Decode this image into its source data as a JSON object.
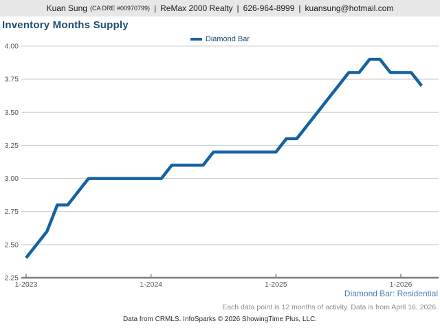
{
  "header": {
    "agent_name": "Kuan Sung",
    "license": "(CA DRE #00970799)",
    "divider": "|",
    "brokerage": "ReMax 2000 Realty",
    "phone": "626-964-8999",
    "email": "kuansung@hotmail.com"
  },
  "title": "Inventory Months Supply",
  "legend": {
    "label": "Diamond Bar"
  },
  "chart_data": {
    "type": "line",
    "title": "Inventory Months Supply",
    "series_name": "Diamond Bar",
    "months": [
      "1-2023",
      "2-2023",
      "3-2023",
      "4-2023",
      "5-2023",
      "6-2023",
      "7-2023",
      "8-2023",
      "9-2023",
      "10-2023",
      "11-2023",
      "12-2023",
      "1-2024",
      "2-2024",
      "3-2024",
      "4-2024",
      "5-2024",
      "6-2024",
      "7-2024",
      "8-2024",
      "9-2024",
      "10-2024",
      "11-2024",
      "12-2024",
      "1-2025",
      "2-2025",
      "3-2025",
      "4-2025",
      "5-2025",
      "6-2025",
      "7-2025",
      "8-2025",
      "9-2025",
      "10-2025",
      "11-2025",
      "12-2025",
      "1-2026",
      "2-2026",
      "3-2026"
    ],
    "values": [
      2.4,
      2.5,
      2.6,
      2.8,
      2.8,
      2.9,
      3.0,
      3.0,
      3.0,
      3.0,
      3.0,
      3.0,
      3.0,
      3.0,
      3.1,
      3.1,
      3.1,
      3.1,
      3.2,
      3.2,
      3.2,
      3.2,
      3.2,
      3.2,
      3.2,
      3.3,
      3.3,
      3.4,
      3.5,
      3.6,
      3.7,
      3.8,
      3.8,
      3.9,
      3.9,
      3.8,
      3.8,
      3.8,
      3.7
    ],
    "ylim": [
      2.25,
      4.0
    ],
    "y_ticks": [
      "2.25",
      "2.50",
      "2.75",
      "3.00",
      "3.25",
      "3.50",
      "3.75",
      "4.00"
    ],
    "x_ticks": [
      "1-2023",
      "1-2024",
      "1-2025",
      "1-2026"
    ],
    "x_tick_indices": [
      0,
      12,
      24,
      36
    ],
    "grid": true,
    "legend_position": "top-center",
    "line_color": "#1562a2"
  },
  "footer": {
    "region_label": "Diamond Bar: Residential",
    "note": "Each data point is 12 months of activity. Data is from April 16, 2026.",
    "attribution": "Data from CRMLS. InfoSparks © 2026 ShowingTime Plus, LLC."
  }
}
